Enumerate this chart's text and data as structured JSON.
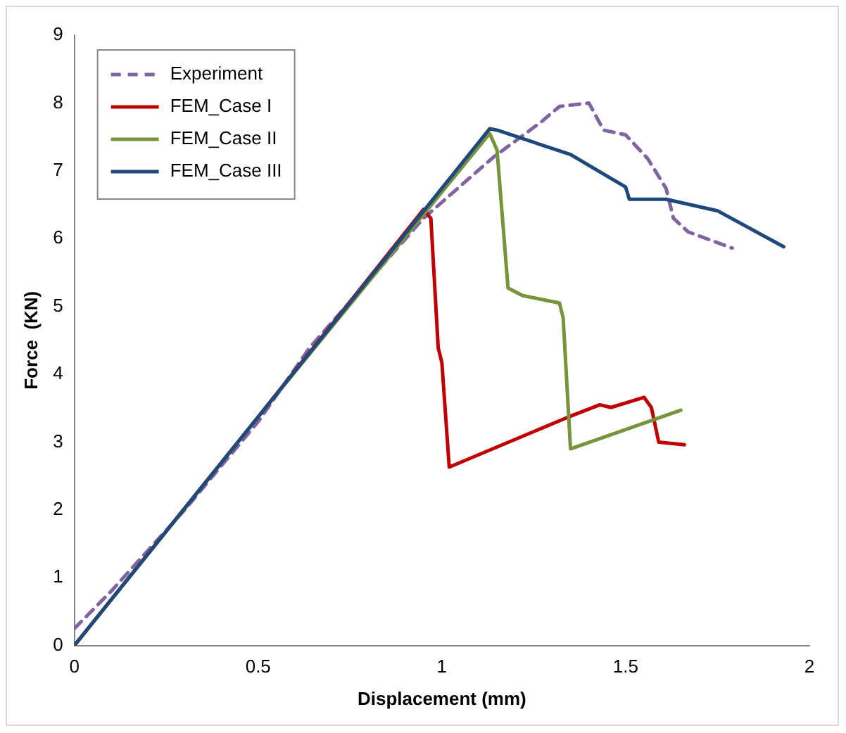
{
  "chart_data": {
    "type": "line",
    "xlabel": "Displacement (mm)",
    "ylabel": "Force  (KN)",
    "xlim": [
      0,
      2
    ],
    "xticks": [
      0,
      0.5,
      1,
      1.5,
      2
    ],
    "ylim": [
      0,
      9
    ],
    "yticks": [
      0,
      1,
      2,
      3,
      4,
      5,
      6,
      7,
      8,
      9
    ],
    "grid": false,
    "legend": "top left",
    "marker": "none",
    "series": [
      {
        "name": "Experiment",
        "color": "#8064a2",
        "line_style": "dashed",
        "x": [
          0,
          0.1,
          0.3,
          0.5,
          0.64,
          0.95,
          1.14,
          1.27,
          1.32,
          1.4,
          1.44,
          1.5,
          1.56,
          1.61,
          1.63,
          1.67,
          1.79
        ],
        "values": [
          0.25,
          0.8,
          2.0,
          3.3,
          4.39,
          6.3,
          7.2,
          7.72,
          7.95,
          8.0,
          7.6,
          7.53,
          7.18,
          6.74,
          6.3,
          6.1,
          5.86
        ]
      },
      {
        "name": "FEM_Case I",
        "color": "#c00000",
        "line_style": "solid",
        "x": [
          0,
          0.5,
          0.95,
          0.97,
          0.99,
          1.0,
          1.02,
          1.34,
          1.43,
          1.46,
          1.55,
          1.57,
          1.59,
          1.66
        ],
        "values": [
          0,
          3.37,
          6.43,
          6.3,
          4.39,
          4.17,
          2.63,
          3.36,
          3.55,
          3.51,
          3.66,
          3.51,
          3.0,
          2.96
        ]
      },
      {
        "name": "FEM_Case II",
        "color": "#77933c",
        "line_style": "solid",
        "x": [
          0,
          0.5,
          1.13,
          1.15,
          1.18,
          1.22,
          1.32,
          1.33,
          1.35,
          1.65
        ],
        "values": [
          0,
          3.37,
          7.55,
          7.31,
          5.27,
          5.16,
          5.05,
          4.83,
          2.9,
          3.47
        ]
      },
      {
        "name": "FEM_Case III",
        "color": "#1f497d",
        "line_style": "solid",
        "x": [
          0,
          0.5,
          1.13,
          1.15,
          1.35,
          1.5,
          1.51,
          1.61,
          1.75,
          1.93
        ],
        "values": [
          0,
          3.37,
          7.62,
          7.6,
          7.24,
          6.76,
          6.58,
          6.58,
          6.41,
          5.88
        ]
      }
    ]
  }
}
